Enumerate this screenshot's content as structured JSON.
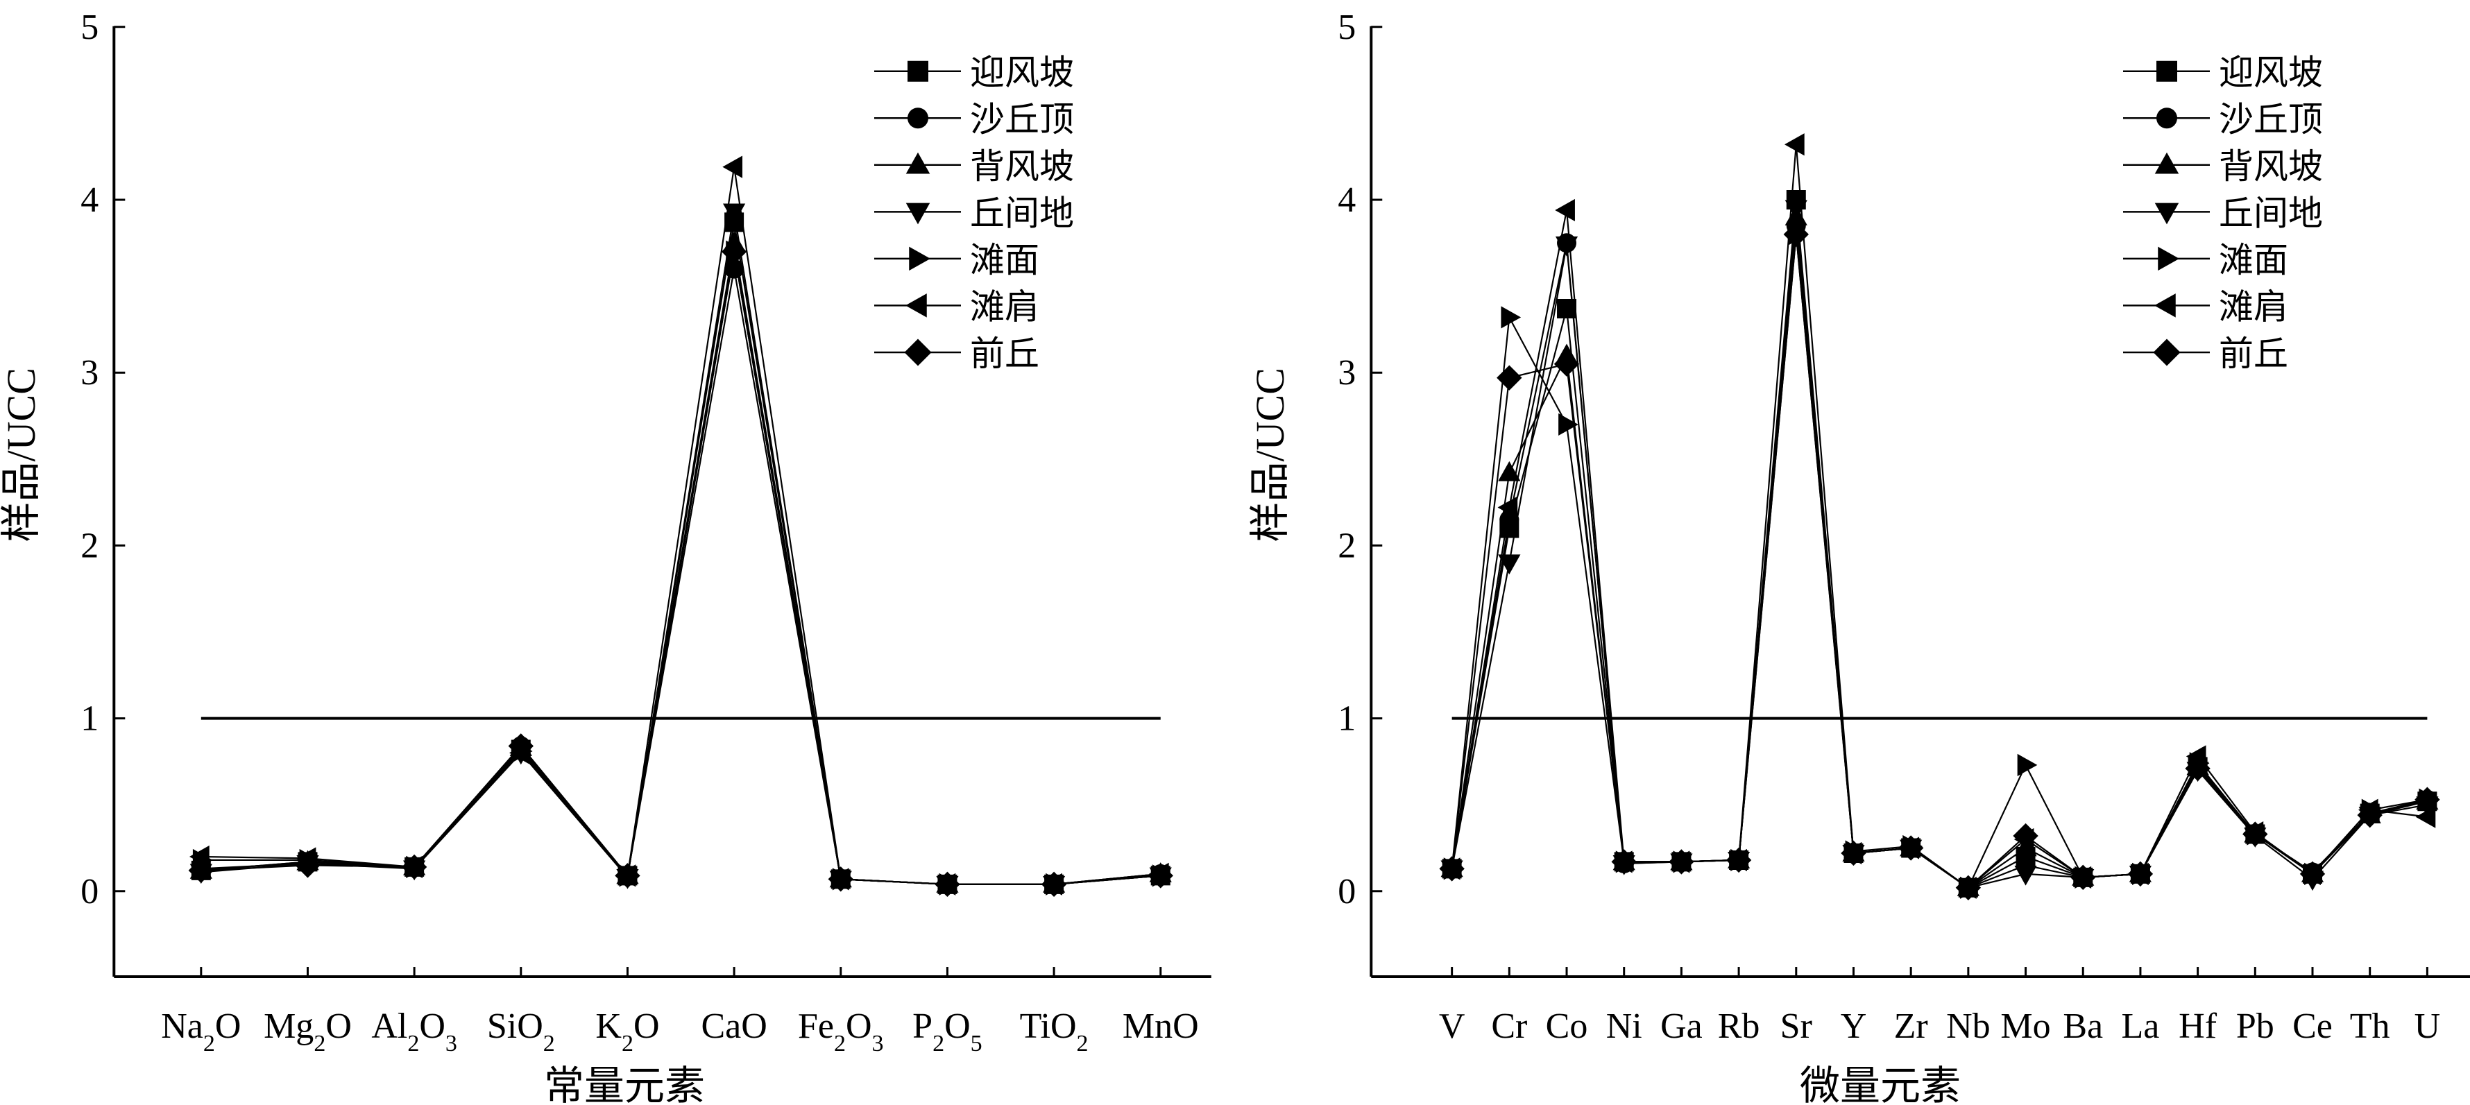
{
  "chart_data": [
    {
      "type": "line",
      "xlabel": "常量元素",
      "ylabel": "样品/UCC",
      "ylim": [
        -0.5,
        5
      ],
      "yticks": [
        0,
        1,
        2,
        3,
        4,
        5
      ],
      "reference_line": 1,
      "categories": [
        "Na2O",
        "Mg2O",
        "Al2O3",
        "SiO2",
        "K2O",
        "CaO",
        "Fe2O3",
        "P2O5",
        "TiO2",
        "MnO"
      ],
      "category_labels": [
        [
          {
            "t": "Na"
          },
          {
            "t": "2",
            "sub": true
          },
          {
            "t": "O"
          }
        ],
        [
          {
            "t": "Mg"
          },
          {
            "t": "2",
            "sub": true
          },
          {
            "t": "O"
          }
        ],
        [
          {
            "t": "Al"
          },
          {
            "t": "2",
            "sub": true
          },
          {
            "t": "O"
          },
          {
            "t": "3",
            "sub": true
          }
        ],
        [
          {
            "t": "SiO"
          },
          {
            "t": "2",
            "sub": true
          }
        ],
        [
          {
            "t": "K"
          },
          {
            "t": "2",
            "sub": true
          },
          {
            "t": "O"
          }
        ],
        [
          {
            "t": "CaO"
          }
        ],
        [
          {
            "t": "Fe"
          },
          {
            "t": "2",
            "sub": true
          },
          {
            "t": "O"
          },
          {
            "t": "3",
            "sub": true
          }
        ],
        [
          {
            "t": "P"
          },
          {
            "t": "2",
            "sub": true
          },
          {
            "t": "O"
          },
          {
            "t": "5",
            "sub": true
          }
        ],
        [
          {
            "t": "TiO"
          },
          {
            "t": "2",
            "sub": true
          }
        ],
        [
          {
            "t": "MnO"
          }
        ]
      ],
      "legend_position": "top-right",
      "series": [
        {
          "name": "迎风坡",
          "marker": "square",
          "values": [
            0.12,
            0.17,
            0.14,
            0.82,
            0.09,
            3.87,
            0.07,
            0.04,
            0.04,
            0.09
          ]
        },
        {
          "name": "沙丘顶",
          "marker": "circle",
          "values": [
            0.13,
            0.16,
            0.14,
            0.84,
            0.09,
            3.6,
            0.07,
            0.04,
            0.04,
            0.1
          ]
        },
        {
          "name": "背风坡",
          "marker": "triangle-up",
          "values": [
            0.12,
            0.17,
            0.14,
            0.83,
            0.09,
            3.75,
            0.07,
            0.04,
            0.04,
            0.1
          ]
        },
        {
          "name": "丘间地",
          "marker": "triangle-down",
          "values": [
            0.11,
            0.16,
            0.13,
            0.8,
            0.08,
            3.93,
            0.07,
            0.04,
            0.04,
            0.09
          ]
        },
        {
          "name": "滩面",
          "marker": "triangle-right",
          "values": [
            0.18,
            0.18,
            0.14,
            0.81,
            0.09,
            3.7,
            0.07,
            0.04,
            0.04,
            0.09
          ]
        },
        {
          "name": "滩肩",
          "marker": "triangle-left",
          "values": [
            0.2,
            0.19,
            0.14,
            0.8,
            0.09,
            4.19,
            0.07,
            0.04,
            0.04,
            0.1
          ]
        },
        {
          "name": "前丘",
          "marker": "diamond",
          "values": [
            0.12,
            0.15,
            0.14,
            0.84,
            0.09,
            3.7,
            0.07,
            0.04,
            0.04,
            0.09
          ]
        }
      ]
    },
    {
      "type": "line",
      "xlabel": "微量元素",
      "ylabel": "样品/UCC",
      "ylim": [
        -0.5,
        5
      ],
      "yticks": [
        0,
        1,
        2,
        3,
        4,
        5
      ],
      "reference_line": 1,
      "categories": [
        "V",
        "Cr",
        "Co",
        "Ni",
        "Ga",
        "Rb",
        "Sr",
        "Y",
        "Zr",
        "Nb",
        "Mo",
        "Ba",
        "La",
        "Hf",
        "Pb",
        "Ce",
        "Th",
        "U"
      ],
      "legend_position": "top-right",
      "series": [
        {
          "name": "迎风坡",
          "marker": "square",
          "values": [
            0.13,
            2.1,
            3.37,
            0.17,
            0.17,
            0.18,
            4.0,
            0.22,
            0.25,
            0.02,
            0.2,
            0.08,
            0.1,
            0.72,
            0.33,
            0.1,
            0.45,
            0.52
          ]
        },
        {
          "name": "沙丘顶",
          "marker": "circle",
          "values": [
            0.13,
            2.15,
            3.75,
            0.16,
            0.17,
            0.18,
            3.85,
            0.22,
            0.25,
            0.02,
            0.15,
            0.08,
            0.1,
            0.73,
            0.33,
            0.11,
            0.45,
            0.53
          ]
        },
        {
          "name": "背风坡",
          "marker": "triangle-up",
          "values": [
            0.13,
            2.42,
            3.1,
            0.17,
            0.17,
            0.18,
            3.9,
            0.22,
            0.25,
            0.02,
            0.25,
            0.08,
            0.1,
            0.72,
            0.33,
            0.1,
            0.44,
            0.52
          ]
        },
        {
          "name": "丘间地",
          "marker": "triangle-down",
          "values": [
            0.13,
            1.9,
            3.74,
            0.16,
            0.17,
            0.18,
            3.95,
            0.22,
            0.25,
            0.02,
            0.1,
            0.08,
            0.1,
            0.7,
            0.32,
            0.07,
            0.44,
            0.5
          ]
        },
        {
          "name": "滩面",
          "marker": "triangle-right",
          "values": [
            0.13,
            3.32,
            2.7,
            0.17,
            0.17,
            0.18,
            3.8,
            0.23,
            0.26,
            0.02,
            0.73,
            0.08,
            0.1,
            0.74,
            0.33,
            0.1,
            0.47,
            0.53
          ]
        },
        {
          "name": "滩肩",
          "marker": "triangle-left",
          "values": [
            0.13,
            2.22,
            3.94,
            0.17,
            0.17,
            0.18,
            4.32,
            0.22,
            0.25,
            0.02,
            0.3,
            0.08,
            0.1,
            0.78,
            0.34,
            0.1,
            0.47,
            0.43
          ]
        },
        {
          "name": "前丘",
          "marker": "diamond",
          "values": [
            0.13,
            2.97,
            3.05,
            0.17,
            0.17,
            0.18,
            3.8,
            0.22,
            0.25,
            0.02,
            0.32,
            0.08,
            0.1,
            0.71,
            0.33,
            0.1,
            0.44,
            0.53
          ]
        }
      ]
    }
  ]
}
